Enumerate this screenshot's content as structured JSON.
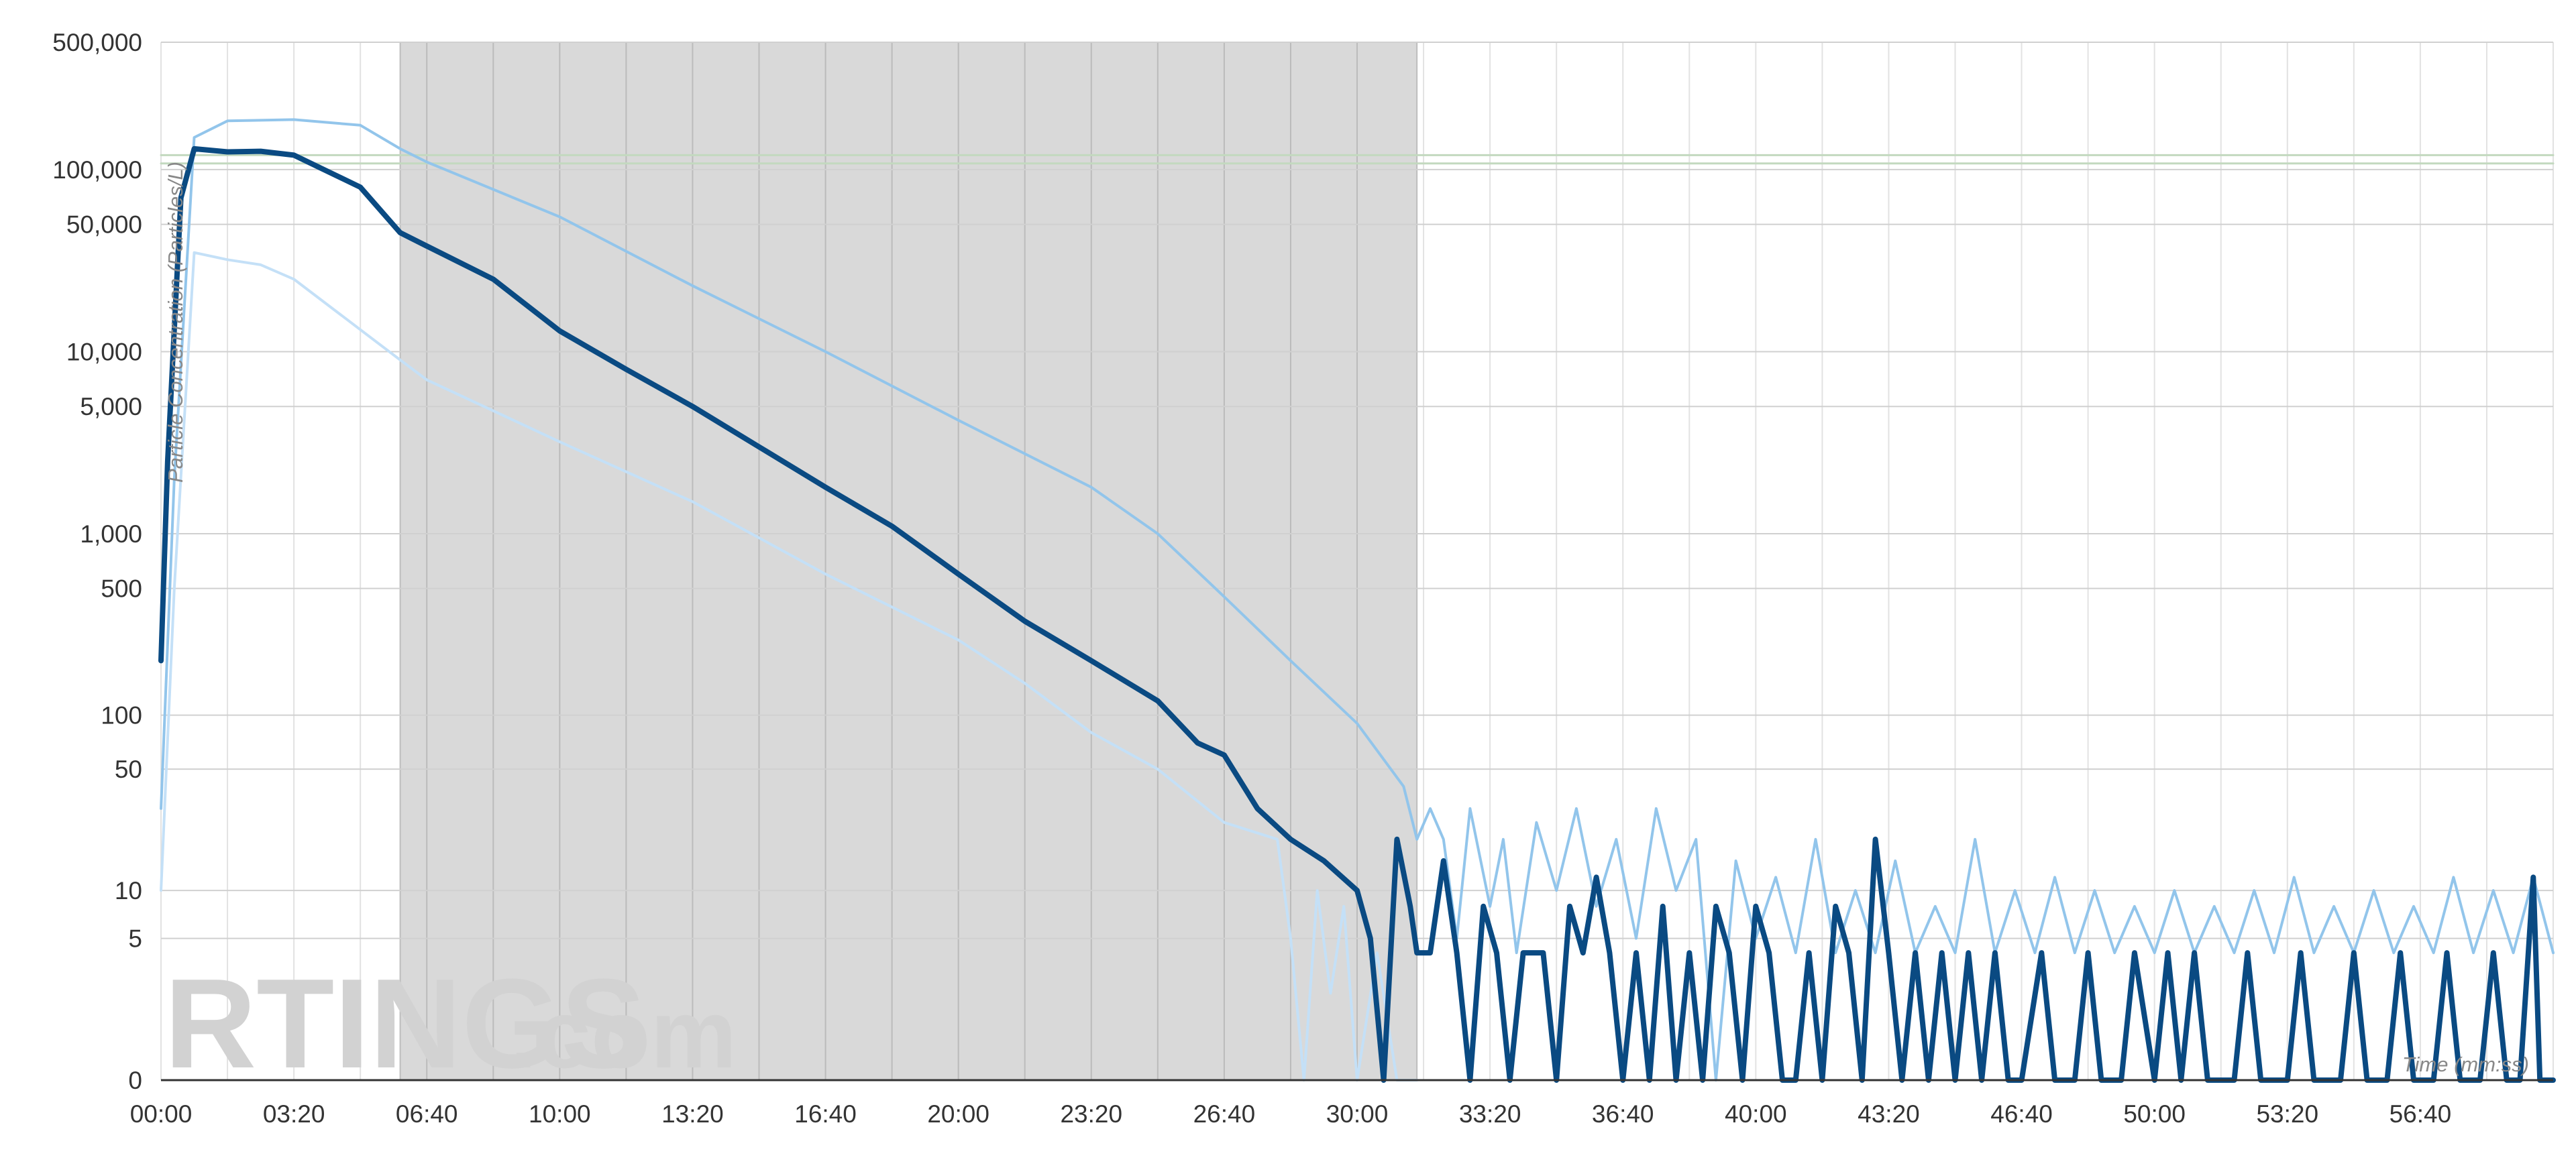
{
  "watermark": {
    "main": "RTINGS",
    "suffix": ".com"
  },
  "chart_data": {
    "type": "line",
    "xlabel": "Time (mm:ss)",
    "ylabel": "Particle Concentration (Particles/L)",
    "x_unit": "seconds",
    "xlim": [
      0,
      3600
    ],
    "x_ticks": [
      0,
      200,
      400,
      600,
      800,
      1000,
      1200,
      1400,
      1600,
      1800,
      2000,
      2200,
      2400,
      2600,
      2800,
      3000,
      3200,
      3400
    ],
    "x_tick_labels": [
      "00:00",
      "03:20",
      "06:40",
      "10:00",
      "13:20",
      "16:40",
      "20:00",
      "23:20",
      "26:40",
      "30:00",
      "33:20",
      "36:40",
      "40:00",
      "43:20",
      "46:40",
      "50:00",
      "53:20",
      "56:40"
    ],
    "y_scale": "symlog",
    "ylim": [
      0,
      500000
    ],
    "y_ticks": [
      0,
      5,
      10,
      50,
      100,
      500,
      1000,
      5000,
      10000,
      50000,
      100000,
      500000
    ],
    "y_tick_labels": [
      "0",
      "5",
      "10",
      "50",
      "100",
      "500",
      "1,000",
      "5,000",
      "10,000",
      "50,000",
      "100,000",
      "500,000"
    ],
    "shaded_region": {
      "x_start": 360,
      "x_end": 1890
    },
    "grid": true,
    "legend": "none",
    "series": [
      {
        "role": "reference-upper",
        "color": "#c3d9bf",
        "points": [
          [
            0,
            120000
          ],
          [
            3600,
            120000
          ]
        ]
      },
      {
        "role": "reference-lower",
        "color": "#c3d9bf",
        "points": [
          [
            0,
            108000
          ],
          [
            3600,
            108000
          ]
        ]
      },
      {
        "role": "upper-bound",
        "color": "#92c5eb",
        "points": [
          [
            0,
            30
          ],
          [
            20,
            2000
          ],
          [
            50,
            150000
          ],
          [
            100,
            185000
          ],
          [
            200,
            188000
          ],
          [
            300,
            175000
          ],
          [
            360,
            130000
          ],
          [
            400,
            110000
          ],
          [
            600,
            55000
          ],
          [
            800,
            23000
          ],
          [
            1000,
            10000
          ],
          [
            1200,
            4200
          ],
          [
            1400,
            1800
          ],
          [
            1500,
            1000
          ],
          [
            1600,
            450
          ],
          [
            1700,
            200
          ],
          [
            1800,
            90
          ],
          [
            1870,
            40
          ],
          [
            1890,
            20
          ],
          [
            1910,
            30
          ],
          [
            1930,
            20
          ],
          [
            1950,
            5
          ],
          [
            1970,
            30
          ],
          [
            2000,
            8
          ],
          [
            2020,
            20
          ],
          [
            2040,
            4
          ],
          [
            2070,
            25
          ],
          [
            2100,
            10
          ],
          [
            2130,
            30
          ],
          [
            2160,
            8
          ],
          [
            2190,
            20
          ],
          [
            2220,
            5
          ],
          [
            2250,
            30
          ],
          [
            2280,
            10
          ],
          [
            2310,
            20
          ],
          [
            2340,
            0
          ],
          [
            2370,
            15
          ],
          [
            2400,
            5
          ],
          [
            2430,
            12
          ],
          [
            2460,
            4
          ],
          [
            2490,
            20
          ],
          [
            2520,
            4
          ],
          [
            2550,
            10
          ],
          [
            2580,
            4
          ],
          [
            2610,
            15
          ],
          [
            2640,
            4
          ],
          [
            2670,
            8
          ],
          [
            2700,
            4
          ],
          [
            2730,
            20
          ],
          [
            2760,
            4
          ],
          [
            2790,
            10
          ],
          [
            2820,
            4
          ],
          [
            2850,
            12
          ],
          [
            2880,
            4
          ],
          [
            2910,
            10
          ],
          [
            2940,
            4
          ],
          [
            2970,
            8
          ],
          [
            3000,
            4
          ],
          [
            3030,
            10
          ],
          [
            3060,
            4
          ],
          [
            3090,
            8
          ],
          [
            3120,
            4
          ],
          [
            3150,
            10
          ],
          [
            3180,
            4
          ],
          [
            3210,
            12
          ],
          [
            3240,
            4
          ],
          [
            3270,
            8
          ],
          [
            3300,
            4
          ],
          [
            3330,
            10
          ],
          [
            3360,
            4
          ],
          [
            3390,
            8
          ],
          [
            3420,
            4
          ],
          [
            3450,
            12
          ],
          [
            3480,
            4
          ],
          [
            3510,
            10
          ],
          [
            3540,
            4
          ],
          [
            3570,
            12
          ],
          [
            3600,
            4
          ]
        ]
      },
      {
        "role": "lower-bound",
        "color": "#c4e0f7",
        "points": [
          [
            0,
            10
          ],
          [
            20,
            500
          ],
          [
            50,
            35000
          ],
          [
            100,
            32000
          ],
          [
            150,
            30000
          ],
          [
            200,
            25000
          ],
          [
            360,
            9000
          ],
          [
            400,
            7000
          ],
          [
            600,
            3200
          ],
          [
            800,
            1500
          ],
          [
            1000,
            600
          ],
          [
            1200,
            260
          ],
          [
            1300,
            150
          ],
          [
            1400,
            80
          ],
          [
            1500,
            50
          ],
          [
            1600,
            25
          ],
          [
            1680,
            20
          ],
          [
            1700,
            5
          ],
          [
            1720,
            0
          ],
          [
            1740,
            10
          ],
          [
            1760,
            2
          ],
          [
            1780,
            8
          ],
          [
            1800,
            0
          ],
          [
            1830,
            4
          ],
          [
            1860,
            0
          ],
          [
            1890,
            0
          ]
        ]
      },
      {
        "role": "average",
        "color": "#0a4a82",
        "points": [
          [
            0,
            200
          ],
          [
            10,
            2500
          ],
          [
            30,
            70000
          ],
          [
            50,
            130000
          ],
          [
            100,
            125000
          ],
          [
            150,
            126000
          ],
          [
            200,
            120000
          ],
          [
            300,
            80000
          ],
          [
            360,
            45000
          ],
          [
            400,
            38000
          ],
          [
            500,
            25000
          ],
          [
            600,
            13000
          ],
          [
            700,
            8000
          ],
          [
            800,
            5000
          ],
          [
            900,
            3000
          ],
          [
            1000,
            1800
          ],
          [
            1100,
            1100
          ],
          [
            1200,
            600
          ],
          [
            1300,
            330
          ],
          [
            1400,
            200
          ],
          [
            1500,
            120
          ],
          [
            1560,
            70
          ],
          [
            1600,
            60
          ],
          [
            1650,
            30
          ],
          [
            1700,
            20
          ],
          [
            1750,
            15
          ],
          [
            1800,
            10
          ],
          [
            1820,
            5
          ],
          [
            1840,
            0
          ],
          [
            1860,
            20
          ],
          [
            1880,
            8
          ],
          [
            1890,
            4
          ],
          [
            1910,
            4
          ],
          [
            1930,
            15
          ],
          [
            1950,
            4
          ],
          [
            1970,
            0
          ],
          [
            1990,
            8
          ],
          [
            2010,
            4
          ],
          [
            2030,
            0
          ],
          [
            2050,
            4
          ],
          [
            2080,
            4
          ],
          [
            2100,
            0
          ],
          [
            2120,
            8
          ],
          [
            2140,
            4
          ],
          [
            2160,
            12
          ],
          [
            2180,
            4
          ],
          [
            2200,
            0
          ],
          [
            2220,
            4
          ],
          [
            2240,
            0
          ],
          [
            2260,
            8
          ],
          [
            2280,
            0
          ],
          [
            2300,
            4
          ],
          [
            2320,
            0
          ],
          [
            2340,
            8
          ],
          [
            2360,
            4
          ],
          [
            2380,
            0
          ],
          [
            2400,
            8
          ],
          [
            2420,
            4
          ],
          [
            2440,
            0
          ],
          [
            2460,
            0
          ],
          [
            2480,
            4
          ],
          [
            2500,
            0
          ],
          [
            2520,
            8
          ],
          [
            2540,
            4
          ],
          [
            2560,
            0
          ],
          [
            2580,
            20
          ],
          [
            2600,
            4
          ],
          [
            2620,
            0
          ],
          [
            2640,
            4
          ],
          [
            2660,
            0
          ],
          [
            2680,
            4
          ],
          [
            2700,
            0
          ],
          [
            2720,
            4
          ],
          [
            2740,
            0
          ],
          [
            2760,
            4
          ],
          [
            2780,
            0
          ],
          [
            2800,
            0
          ],
          [
            2830,
            4
          ],
          [
            2850,
            0
          ],
          [
            2880,
            0
          ],
          [
            2900,
            4
          ],
          [
            2920,
            0
          ],
          [
            2950,
            0
          ],
          [
            2970,
            4
          ],
          [
            3000,
            0
          ],
          [
            3020,
            4
          ],
          [
            3040,
            0
          ],
          [
            3060,
            4
          ],
          [
            3080,
            0
          ],
          [
            3120,
            0
          ],
          [
            3140,
            4
          ],
          [
            3160,
            0
          ],
          [
            3200,
            0
          ],
          [
            3220,
            4
          ],
          [
            3240,
            0
          ],
          [
            3280,
            0
          ],
          [
            3300,
            4
          ],
          [
            3320,
            0
          ],
          [
            3350,
            0
          ],
          [
            3370,
            4
          ],
          [
            3390,
            0
          ],
          [
            3420,
            0
          ],
          [
            3440,
            4
          ],
          [
            3460,
            0
          ],
          [
            3490,
            0
          ],
          [
            3510,
            4
          ],
          [
            3530,
            0
          ],
          [
            3550,
            0
          ],
          [
            3570,
            12
          ],
          [
            3580,
            0
          ],
          [
            3600,
            0
          ]
        ]
      }
    ]
  }
}
